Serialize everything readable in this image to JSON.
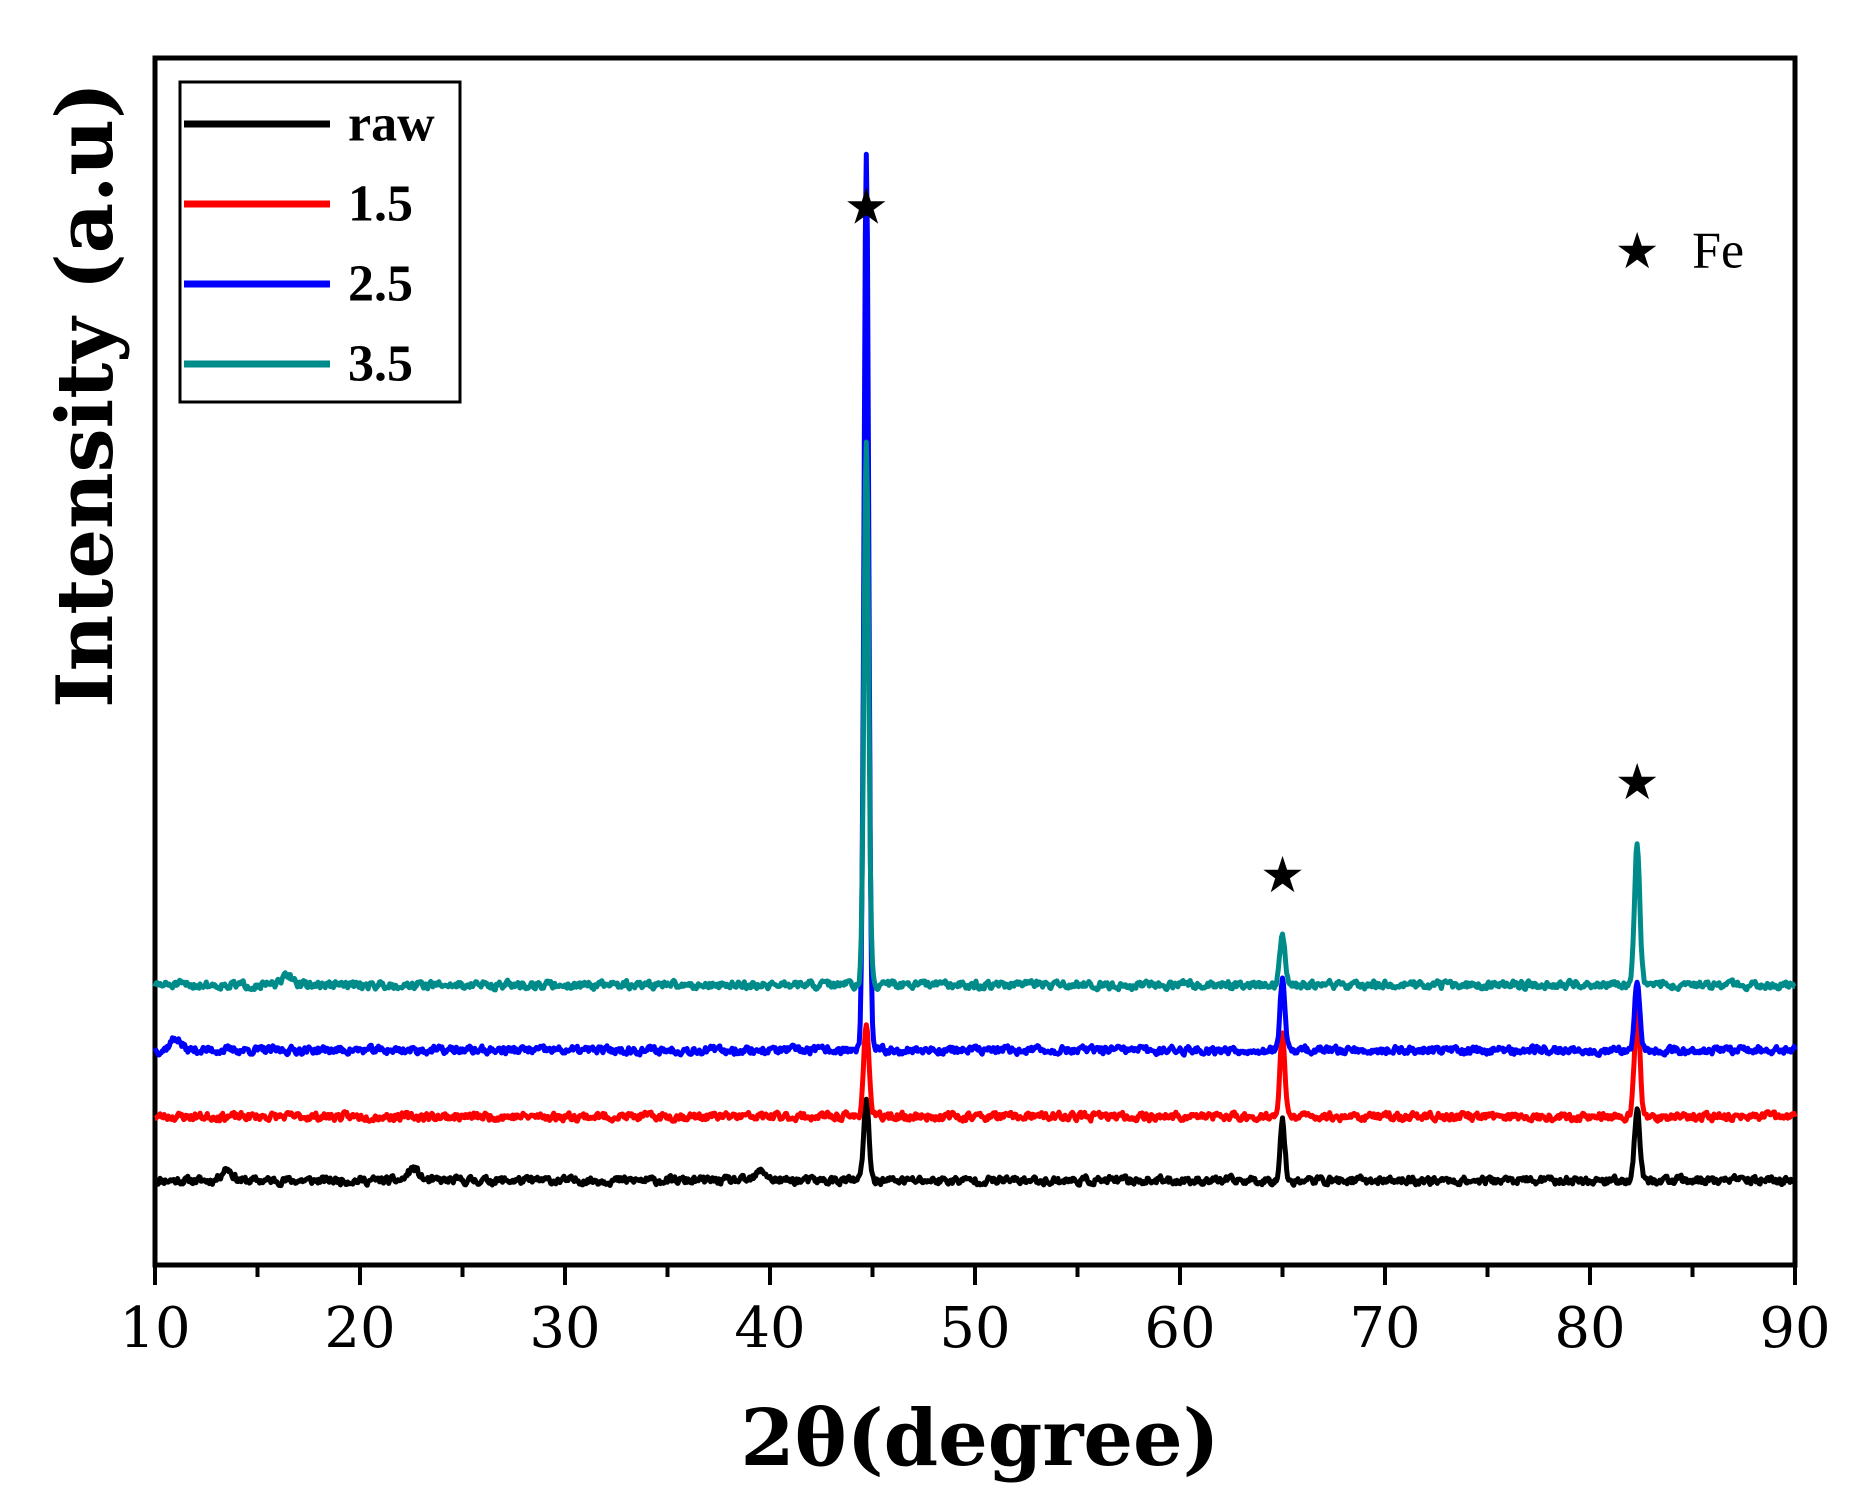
{
  "chart_data": {
    "type": "line",
    "title": "",
    "xlabel": "2θ(degree)",
    "ylabel": "Intensity (a.u)",
    "xlim": [
      10,
      90
    ],
    "ylim": [
      0,
      100
    ],
    "x_ticks": [
      10,
      20,
      30,
      40,
      50,
      60,
      70,
      80,
      90
    ],
    "y_ticks_shown": false,
    "legend_position": "top-left",
    "series": [
      {
        "name": "raw",
        "color": "#000000",
        "baseline": 7,
        "noise": 0.5,
        "seed": 11,
        "peaks": [
          {
            "x": 44.7,
            "height": 6.5,
            "width": 0.18
          },
          {
            "x": 65.0,
            "height": 5.0,
            "width": 0.16
          },
          {
            "x": 82.3,
            "height": 6.0,
            "width": 0.18
          }
        ],
        "bumps": [
          {
            "x": 13.5,
            "height": 1.0
          },
          {
            "x": 22.6,
            "height": 1.0
          },
          {
            "x": 39.6,
            "height": 0.8
          }
        ]
      },
      {
        "name": "1.5",
        "color": "#ff0000",
        "baseline": 12.3,
        "noise": 0.5,
        "seed": 23,
        "peaks": [
          {
            "x": 44.7,
            "height": 7.8,
            "width": 0.18
          },
          {
            "x": 65.0,
            "height": 7.0,
            "width": 0.16
          },
          {
            "x": 82.3,
            "height": 9.0,
            "width": 0.18
          }
        ],
        "bumps": []
      },
      {
        "name": "2.5",
        "color": "#0000ff",
        "baseline": 17.8,
        "noise": 0.5,
        "seed": 37,
        "peaks": [
          {
            "x": 44.7,
            "height": 74,
            "width": 0.16
          },
          {
            "x": 65.0,
            "height": 5.8,
            "width": 0.16
          },
          {
            "x": 82.3,
            "height": 5.8,
            "width": 0.18
          }
        ],
        "bumps": [
          {
            "x": 11.0,
            "height": 1.0
          }
        ]
      },
      {
        "name": "3.5",
        "color": "#008b8b",
        "baseline": 23.2,
        "noise": 0.5,
        "seed": 51,
        "peaks": [
          {
            "x": 44.7,
            "height": 45,
            "width": 0.16
          },
          {
            "x": 65.0,
            "height": 4.2,
            "width": 0.18
          },
          {
            "x": 82.3,
            "height": 11.8,
            "width": 0.18
          }
        ],
        "bumps": [
          {
            "x": 16.5,
            "height": 0.8
          }
        ]
      }
    ],
    "annotations": [
      {
        "type": "marker",
        "symbol": "★",
        "x": 44.7,
        "y": 87.7
      },
      {
        "type": "marker",
        "symbol": "★",
        "x": 65.0,
        "y": 32.3
      },
      {
        "type": "marker",
        "symbol": "★",
        "x": 82.3,
        "y": 40.0
      },
      {
        "type": "legend-note",
        "symbol": "★",
        "label": "Fe",
        "x": 82.3,
        "y": 84.0
      }
    ]
  }
}
